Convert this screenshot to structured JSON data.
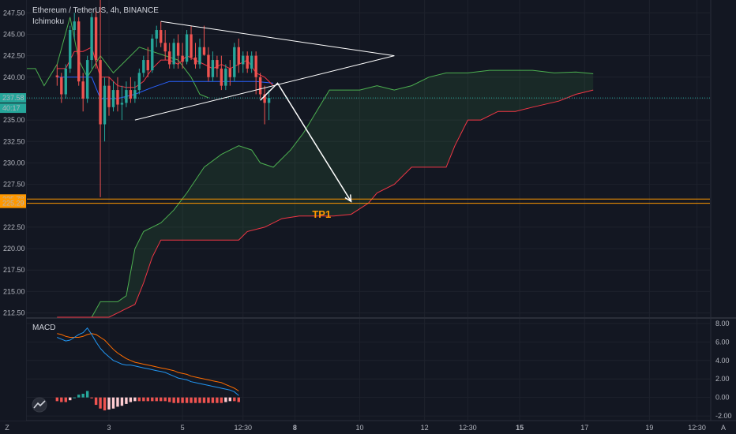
{
  "header": {
    "title": "Ethereum / TetherUS, 4h, BINANCE",
    "indicator": "Ichimoku"
  },
  "macd_label": "MACD",
  "timeframe_letters": {
    "left": "Z",
    "right": "A"
  },
  "colors": {
    "background": "#131722",
    "up": "#26a69a",
    "down": "#ef5350",
    "tenkan": "#f23645",
    "kijun": "#2962ff",
    "chikou": "#4caf50",
    "cloud_up": "#4caf50",
    "cloud_down": "#f23645",
    "tp_line": "#ff9800",
    "macd_line": "#2196f3",
    "signal_line": "#ff6d00",
    "drawing": "#ffffff"
  },
  "annotations": {
    "tp1": "TP1",
    "price_tag": "237.58",
    "countdown": "40:17",
    "level_high": "225.78",
    "level_low": "225.29"
  },
  "chart_data": [
    {
      "type": "candlestick",
      "title": "Ethereum / TetherUS, 4h, BINANCE",
      "ylim": [
        212,
        249
      ],
      "y_ticks": [
        247.5,
        245.0,
        242.5,
        240.0,
        237.5,
        235.0,
        232.5,
        230.0,
        227.5,
        222.5,
        220.0,
        217.5,
        215.0,
        212.5
      ],
      "y_tick_labels": [
        "247.50",
        "245.00",
        "242.50",
        "240.00",
        "237.50",
        "235.00",
        "232.50",
        "230.00",
        "227.50",
        "222.50",
        "220.00",
        "217.50",
        "215.00",
        "212.50"
      ],
      "x_tick_labels": [
        "3",
        "5",
        "12:30",
        "8",
        "10",
        "12",
        "12:30",
        "15",
        "17",
        "19",
        "12:30"
      ],
      "x_tick_bold": [
        false,
        false,
        false,
        true,
        false,
        false,
        false,
        true,
        false,
        false,
        false
      ],
      "x_tick_index": [
        12,
        29,
        43,
        55,
        70,
        85,
        95,
        107,
        122,
        137,
        148
      ],
      "x_range": [
        -7,
        151
      ],
      "current_price": 237.58,
      "candles": [
        [
          240.2,
          241.5,
          239.0,
          240.0
        ],
        [
          240.0,
          240.5,
          237.0,
          238.0
        ],
        [
          238.0,
          241.5,
          237.5,
          241.0
        ],
        [
          241.0,
          246.0,
          240.5,
          245.5
        ],
        [
          245.5,
          247.5,
          244.5,
          246.5
        ],
        [
          246.5,
          247.0,
          239.0,
          239.5
        ],
        [
          239.5,
          240.5,
          236.0,
          237.5
        ],
        [
          237.5,
          242.5,
          237.0,
          242.0
        ],
        [
          242.0,
          247.5,
          241.0,
          247.0
        ],
        [
          247.0,
          248.0,
          241.0,
          242.0
        ],
        [
          242.0,
          249.0,
          226.0,
          234.5
        ],
        [
          234.5,
          240.0,
          232.5,
          239.0
        ],
        [
          239.0,
          240.0,
          235.5,
          236.5
        ],
        [
          236.5,
          239.5,
          236.0,
          238.5
        ],
        [
          238.5,
          240.0,
          236.0,
          236.8
        ],
        [
          236.8,
          239.0,
          235.0,
          237.0
        ],
        [
          237.0,
          239.5,
          236.5,
          238.5
        ],
        [
          238.5,
          240.0,
          237.0,
          237.5
        ],
        [
          237.5,
          239.5,
          237.0,
          238.5
        ],
        [
          238.5,
          241.0,
          238.0,
          240.5
        ],
        [
          240.5,
          242.5,
          240.0,
          242.0
        ],
        [
          242.0,
          243.5,
          240.0,
          240.8
        ],
        [
          240.8,
          245.0,
          240.5,
          244.5
        ],
        [
          244.5,
          246.0,
          243.5,
          245.5
        ],
        [
          245.5,
          246.5,
          243.5,
          244.0
        ],
        [
          244.0,
          245.5,
          242.0,
          243.0
        ],
        [
          243.0,
          244.0,
          241.0,
          241.5
        ],
        [
          241.5,
          244.5,
          241.0,
          244.0
        ],
        [
          244.0,
          245.0,
          241.0,
          242.5
        ],
        [
          242.5,
          244.0,
          241.0,
          241.8
        ],
        [
          241.8,
          245.5,
          241.5,
          245.0
        ],
        [
          245.0,
          246.0,
          242.0,
          242.3
        ],
        [
          242.3,
          244.0,
          241.0,
          241.5
        ],
        [
          241.5,
          244.5,
          241.0,
          243.5
        ],
        [
          243.5,
          246.0,
          242.5,
          242.6
        ],
        [
          242.6,
          243.5,
          239.5,
          240.0
        ],
        [
          240.0,
          243.0,
          239.5,
          242.0
        ],
        [
          242.0,
          242.5,
          240.0,
          241.0
        ],
        [
          241.0,
          242.5,
          238.5,
          239.0
        ],
        [
          239.0,
          241.5,
          238.5,
          241.0
        ],
        [
          241.0,
          242.0,
          239.0,
          240.0
        ],
        [
          240.0,
          244.0,
          239.5,
          243.5
        ],
        [
          243.5,
          244.5,
          240.5,
          241.5
        ],
        [
          241.5,
          243.0,
          240.5,
          242.5
        ],
        [
          242.5,
          243.0,
          240.5,
          241.0
        ],
        [
          241.0,
          243.0,
          240.5,
          242.5
        ],
        [
          242.5,
          243.0,
          238.0,
          240.0
        ],
        [
          240.0,
          240.5,
          237.5,
          238.0
        ],
        [
          238.0,
          239.0,
          234.5,
          237.0
        ],
        [
          237.0,
          238.5,
          235.0,
          237.58
        ]
      ],
      "tenkan": [
        [
          0,
          241.0
        ],
        [
          2,
          241.0
        ],
        [
          4,
          243.0
        ],
        [
          6,
          243.0
        ],
        [
          8,
          243.5
        ],
        [
          10,
          240.0
        ],
        [
          12,
          240.0
        ],
        [
          14,
          239.0
        ],
        [
          16,
          238.8
        ],
        [
          18,
          238.8
        ],
        [
          20,
          239.5
        ],
        [
          22,
          241.0
        ],
        [
          24,
          242.0
        ],
        [
          26,
          242.0
        ],
        [
          28,
          241.5
        ],
        [
          30,
          242.5
        ],
        [
          32,
          242.0
        ],
        [
          34,
          241.5
        ],
        [
          36,
          241.0
        ],
        [
          38,
          241.5
        ],
        [
          40,
          241.0
        ],
        [
          42,
          241.5
        ],
        [
          44,
          242.0
        ],
        [
          46,
          240.5
        ],
        [
          48,
          240.0
        ],
        [
          50,
          239.0
        ]
      ],
      "kijun": [
        [
          0,
          240.0
        ],
        [
          4,
          240.0
        ],
        [
          8,
          240.0
        ],
        [
          10,
          237.5
        ],
        [
          14,
          237.5
        ],
        [
          18,
          238.0
        ],
        [
          22,
          238.8
        ],
        [
          26,
          239.5
        ],
        [
          30,
          239.5
        ],
        [
          34,
          239.5
        ],
        [
          38,
          239.5
        ],
        [
          42,
          239.5
        ],
        [
          46,
          239.5
        ],
        [
          50,
          239.3
        ]
      ],
      "chikou": [
        [
          -7,
          241.0
        ],
        [
          -5,
          241.0
        ],
        [
          -3,
          239.0
        ],
        [
          0,
          241.5
        ],
        [
          3,
          247.0
        ],
        [
          5,
          242.0
        ],
        [
          7,
          240.0
        ],
        [
          10,
          242.5
        ],
        [
          13,
          240.5
        ],
        [
          16,
          242.0
        ],
        [
          19,
          243.5
        ],
        [
          22,
          243.0
        ],
        [
          25,
          242.5
        ],
        [
          28,
          242.0
        ],
        [
          31,
          240.0
        ],
        [
          33,
          238.0
        ],
        [
          35,
          237.6
        ]
      ],
      "senkou_a": [
        [
          0,
          212
        ],
        [
          8,
          212
        ],
        [
          10,
          213.8
        ],
        [
          14,
          213.8
        ],
        [
          16,
          214.5
        ],
        [
          18,
          220.0
        ],
        [
          20,
          222.0
        ],
        [
          24,
          223.0
        ],
        [
          27,
          224.5
        ],
        [
          30,
          226.5
        ],
        [
          34,
          229.5
        ],
        [
          38,
          231.0
        ],
        [
          42,
          232.0
        ],
        [
          45,
          231.5
        ],
        [
          47,
          230.0
        ],
        [
          50,
          229.5
        ],
        [
          54,
          231.5
        ],
        [
          57,
          233.5
        ],
        [
          60,
          236.0
        ],
        [
          63,
          238.5
        ],
        [
          66,
          238.5
        ],
        [
          70,
          238.5
        ],
        [
          74,
          239.0
        ],
        [
          78,
          238.5
        ],
        [
          82,
          239.0
        ],
        [
          86,
          240.0
        ],
        [
          90,
          240.5
        ],
        [
          95,
          240.5
        ],
        [
          100,
          240.8
        ],
        [
          105,
          240.8
        ],
        [
          110,
          240.8
        ],
        [
          115,
          240.5
        ],
        [
          120,
          240.6
        ],
        [
          124,
          240.4
        ]
      ],
      "senkou_b": [
        [
          0,
          212
        ],
        [
          8,
          212
        ],
        [
          10,
          212
        ],
        [
          12,
          212
        ],
        [
          14,
          212.5
        ],
        [
          16,
          213.0
        ],
        [
          18,
          213.5
        ],
        [
          20,
          216.0
        ],
        [
          22,
          219.0
        ],
        [
          24,
          221.0
        ],
        [
          28,
          221.0
        ],
        [
          32,
          221.0
        ],
        [
          36,
          221.0
        ],
        [
          40,
          221.0
        ],
        [
          42,
          221.0
        ],
        [
          44,
          222.0
        ],
        [
          48,
          222.5
        ],
        [
          52,
          223.5
        ],
        [
          56,
          223.8
        ],
        [
          60,
          223.8
        ],
        [
          64,
          223.8
        ],
        [
          68,
          224.0
        ],
        [
          72,
          225.3
        ],
        [
          74,
          226.5
        ],
        [
          78,
          227.5
        ],
        [
          82,
          229.5
        ],
        [
          86,
          229.5
        ],
        [
          90,
          229.5
        ],
        [
          92,
          232.0
        ],
        [
          95,
          235.0
        ],
        [
          98,
          235.0
        ],
        [
          102,
          236.0
        ],
        [
          106,
          236.0
        ],
        [
          110,
          236.5
        ],
        [
          116,
          237.2
        ],
        [
          120,
          238.0
        ],
        [
          124,
          238.5
        ]
      ],
      "levels": [
        225.78,
        225.29
      ],
      "triangle": {
        "upper": [
          [
            24,
            246.5
          ],
          [
            78,
            242.5
          ]
        ],
        "lower": [
          [
            18,
            235.0
          ],
          [
            78,
            242.5
          ]
        ]
      },
      "projection": [
        [
          47,
          237.3
        ],
        [
          51,
          239.3
        ],
        [
          68,
          225.5
        ]
      ]
    },
    {
      "type": "macd",
      "title": "MACD",
      "ylim": [
        -2.5,
        8.5
      ],
      "y_ticks": [
        8.0,
        6.0,
        4.0,
        2.0,
        0.0,
        -2.0
      ],
      "y_tick_labels": [
        "8.00",
        "6.00",
        "4.00",
        "2.00",
        "0.00",
        "-2.00"
      ],
      "macd": [
        6.5,
        6.3,
        6.1,
        6.2,
        6.5,
        6.8,
        7.0,
        7.5,
        6.8,
        6.0,
        5.3,
        4.8,
        4.4,
        4.0,
        3.8,
        3.6,
        3.5,
        3.5,
        3.4,
        3.3,
        3.2,
        3.1,
        3.0,
        2.9,
        2.8,
        2.7,
        2.5,
        2.3,
        2.1,
        2.0,
        1.9,
        1.7,
        1.6,
        1.5,
        1.4,
        1.3,
        1.2,
        1.1,
        1.0,
        0.9,
        0.8,
        0.6,
        0.2
      ],
      "signal": [
        6.9,
        6.8,
        6.6,
        6.5,
        6.5,
        6.5,
        6.6,
        6.8,
        6.9,
        6.8,
        6.5,
        6.2,
        5.7,
        5.2,
        4.8,
        4.5,
        4.2,
        4.0,
        3.8,
        3.7,
        3.6,
        3.5,
        3.4,
        3.3,
        3.2,
        3.1,
        3.0,
        2.9,
        2.7,
        2.6,
        2.5,
        2.3,
        2.2,
        2.1,
        2.0,
        1.9,
        1.8,
        1.7,
        1.6,
        1.4,
        1.2,
        1.0,
        0.7
      ],
      "histogram": [
        -0.4,
        -0.5,
        -0.5,
        -0.3,
        0.0,
        0.3,
        0.4,
        0.7,
        -0.1,
        -0.8,
        -1.2,
        -1.4,
        -1.3,
        -1.2,
        -1.0,
        -0.9,
        -0.7,
        -0.5,
        -0.4,
        -0.4,
        -0.4,
        -0.4,
        -0.4,
        -0.4,
        -0.4,
        -0.4,
        -0.5,
        -0.6,
        -0.6,
        -0.6,
        -0.6,
        -0.6,
        -0.6,
        -0.6,
        -0.6,
        -0.6,
        -0.6,
        -0.6,
        -0.6,
        -0.5,
        -0.4,
        -0.4,
        -0.5
      ]
    }
  ]
}
